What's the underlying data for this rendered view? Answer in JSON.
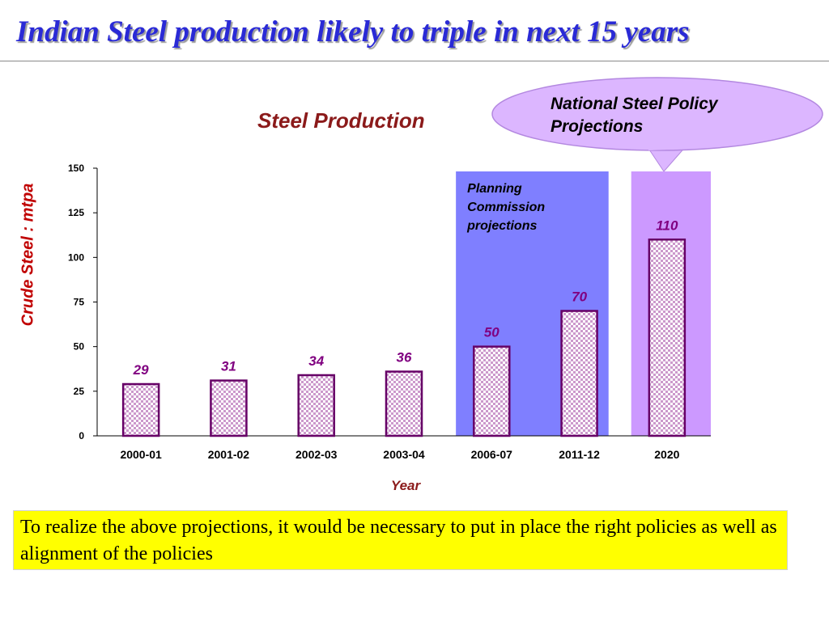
{
  "slide": {
    "title": "Indian Steel production likely to triple in next 15 years",
    "callout": "National Steel Policy Projections",
    "footnote": "To realize the above projections, it would be necessary to put in place the right policies as well as alignment of the policies"
  },
  "chart_data": {
    "type": "bar",
    "title": "Steel Production",
    "xlabel": "Year",
    "ylabel": "Crude Steel : mtpa",
    "categories": [
      "2000-01",
      "2001-02",
      "2002-03",
      "2003-04",
      "2006-07",
      "2011-12",
      "2020"
    ],
    "values": [
      29,
      31,
      34,
      36,
      50,
      70,
      110
    ],
    "data_labels": [
      "29",
      "31",
      "34",
      "36",
      "50",
      "70",
      "110"
    ],
    "ylim": [
      0,
      150
    ],
    "yticks": [
      "0",
      "25",
      "50",
      "75",
      "100",
      "125",
      "150"
    ],
    "grid": false,
    "legend": "none",
    "bar_pattern": "checkered",
    "regions": [
      {
        "label": "Planning Commission projections",
        "categories": [
          "2006-07",
          "2011-12"
        ],
        "color": "#7f7fff"
      },
      {
        "label": "",
        "categories": [
          "2020"
        ],
        "color": "#cc99ff"
      }
    ],
    "colors": {
      "bar_fill": "#cc99cc",
      "bar_pattern_light": "#ffffff",
      "bar_border": "#660066",
      "data_label": "#800080",
      "tick_label": "#000000"
    }
  }
}
